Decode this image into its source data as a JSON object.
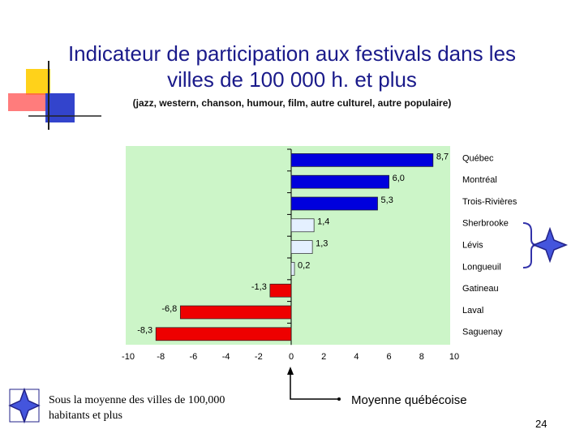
{
  "chart_data": {
    "type": "hbar",
    "title": "Indicateur de participation aux festivals dans  les villes de 100 000 h. et plus",
    "subtitle": "(jazz, western, chanson, humour, film, autre culturel, autre populaire)",
    "categories": [
      "Québec",
      "Montréal",
      "Trois-Rivières",
      "Sherbrooke",
      "Lévis",
      "Longueuil",
      "Gatineau",
      "Laval",
      "Saguenay"
    ],
    "values": [
      8.7,
      6.0,
      5.3,
      1.4,
      1.3,
      0.2,
      -1.3,
      -6.8,
      -8.3
    ],
    "value_labels": [
      "8,7",
      "6,0",
      "5,3",
      "1,4",
      "1,3",
      "0,2",
      "-1,3",
      "-6,8",
      "-8,3"
    ],
    "colors": [
      "#0000dd",
      "#0000dd",
      "#0000dd",
      "#e4f0ff",
      "#e4f0ff",
      "#e4f0ff",
      "#ee0000",
      "#ee0000",
      "#ee0000"
    ],
    "xlim": [
      -10,
      10
    ],
    "xticks": [
      -10,
      -8,
      -6,
      -4,
      -2,
      0,
      2,
      4,
      6,
      8,
      10
    ],
    "plot_background": "#ccf5c8",
    "grid": false
  },
  "slide": {
    "footnote": "Sous la moyenne des villes de 100,000 habitants et plus",
    "average_label": "Moyenne québécoise",
    "page_number": "24"
  }
}
